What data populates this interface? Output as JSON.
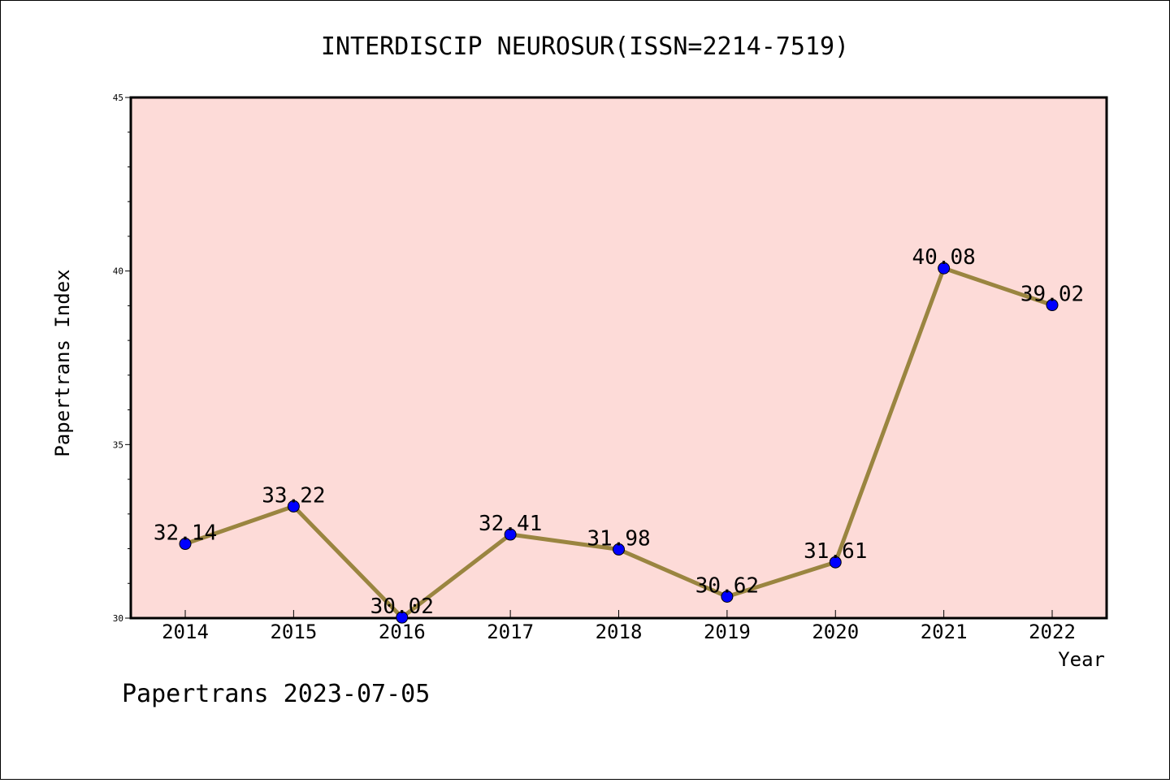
{
  "chart_data": {
    "type": "line",
    "title": "INTERDISCIP NEUROSUR(ISSN=2214-7519)",
    "xlabel": "Year",
    "ylabel": "Papertrans Index",
    "categories": [
      "2014",
      "2015",
      "2016",
      "2017",
      "2018",
      "2019",
      "2020",
      "2021",
      "2022"
    ],
    "values": [
      32.14,
      33.22,
      30.02,
      32.41,
      31.98,
      30.62,
      31.61,
      40.08,
      39.02
    ],
    "data_labels": [
      "32.14",
      "33.22",
      "30.02",
      "32.41",
      "31.98",
      "30.62",
      "31.61",
      "40.08",
      "39.02"
    ],
    "ylim": [
      30,
      45
    ],
    "yticks": [
      30,
      35,
      40,
      45
    ],
    "ytick_labels": [
      "30",
      "35",
      "40",
      "45"
    ],
    "grid": false,
    "colors": {
      "plot_background": "#fddbd8",
      "line": "#9a8540",
      "marker": "#0000ff"
    }
  },
  "footer": "Papertrans 2023-07-05"
}
